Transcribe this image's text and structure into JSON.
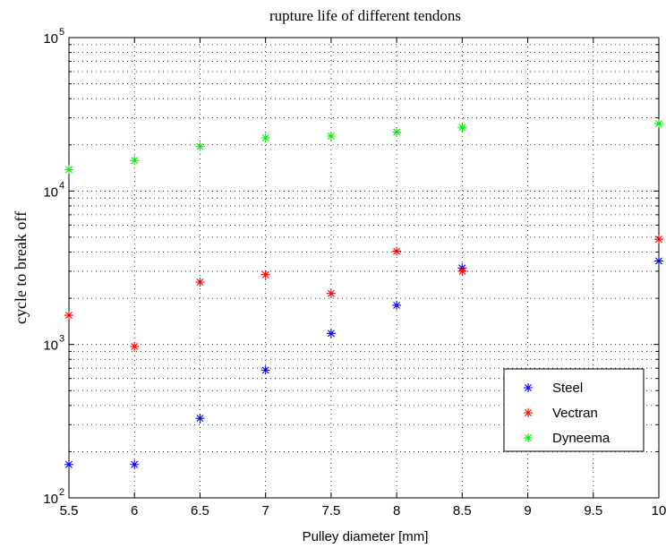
{
  "chart_data": {
    "type": "scatter",
    "title": "rupture life of different tendons",
    "xlabel": "Pulley diameter [mm]",
    "ylabel": "cycle to break off",
    "xlim": [
      5.5,
      10
    ],
    "ylim": [
      100,
      100000
    ],
    "yscale": "log",
    "grid": true,
    "legend_position": "bottom-right",
    "x_ticks": [
      "5.5",
      "6",
      "6.5",
      "7",
      "7.5",
      "8",
      "8.5",
      "9",
      "9.5",
      "10"
    ],
    "y_tick_labels": [
      {
        "base": "10",
        "exp": "2"
      },
      {
        "base": "10",
        "exp": "3"
      },
      {
        "base": "10",
        "exp": "4"
      },
      {
        "base": "10",
        "exp": "5"
      }
    ],
    "series": [
      {
        "name": "Steel",
        "color": "#0000ff",
        "x": [
          5.5,
          6,
          6.5,
          7,
          7.5,
          8,
          8.5,
          10
        ],
        "y": [
          165,
          165,
          330,
          680,
          1180,
          1800,
          3150,
          3500
        ]
      },
      {
        "name": "Vectran",
        "color": "#ff0000",
        "x": [
          5.5,
          6,
          6.5,
          7,
          7.5,
          8,
          8.5,
          10
        ],
        "y": [
          1550,
          970,
          2550,
          2850,
          2150,
          4050,
          3000,
          4850
        ]
      },
      {
        "name": "Dyneema",
        "color": "#00ee00",
        "x": [
          5.5,
          6,
          6.5,
          7,
          7.5,
          8,
          8.5,
          10
        ],
        "y": [
          13800,
          15800,
          19500,
          22200,
          22800,
          24200,
          26000,
          27500
        ]
      }
    ]
  }
}
